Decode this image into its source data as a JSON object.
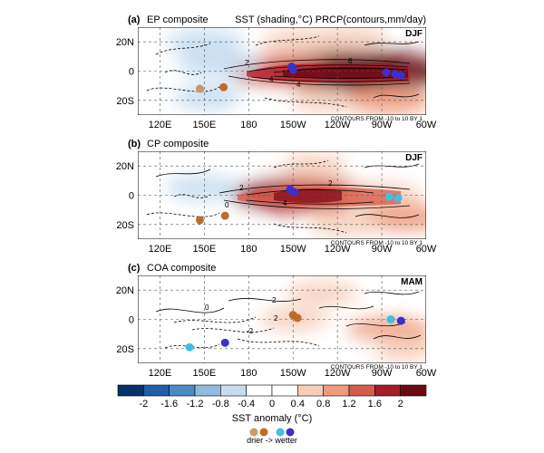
{
  "chart_data": {
    "type": "heatmap",
    "map_extent": {
      "lon": [
        105,
        300
      ],
      "lat": [
        -30,
        30
      ]
    },
    "lon_ticks": [
      "120E",
      "150E",
      "180",
      "150W",
      "120W",
      "90W",
      "60W"
    ],
    "lat_ticks": [
      "20N",
      "0",
      "20S"
    ],
    "contour_note": "CONTOURS FROM -10 to 10 BY 1",
    "header_right": "SST (shading,°C) PRCP(contours,mm/day)",
    "panels": [
      {
        "tag": "(a)",
        "title": "EP composite",
        "season": "DJF",
        "contour_labels": [
          "2",
          "6",
          "4",
          "4"
        ],
        "sst_anomalies": [
          {
            "lon": 240,
            "lat": 0,
            "value": 2.0
          },
          {
            "lon": 270,
            "lat": 0,
            "value": 2.0
          },
          {
            "lon": 200,
            "lat": 0,
            "value": 1.2
          },
          {
            "lon": 160,
            "lat": 5,
            "value": -0.8
          },
          {
            "lon": 150,
            "lat": 20,
            "value": -0.6
          },
          {
            "lon": 155,
            "lat": -18,
            "value": -0.6
          },
          {
            "lon": 215,
            "lat": 20,
            "value": 0.6
          },
          {
            "lon": 250,
            "lat": 22,
            "value": 0.4
          },
          {
            "lon": 230,
            "lat": -20,
            "value": 0.4
          },
          {
            "lon": 275,
            "lat": -20,
            "value": 0.8
          },
          {
            "lon": 190,
            "lat": -22,
            "value": -0.2
          }
        ],
        "stations": [
          {
            "lon": 147,
            "lat": -12,
            "class": "drier"
          },
          {
            "lon": 163,
            "lat": -11,
            "class": "dry"
          },
          {
            "lon": 209,
            "lat": 3,
            "class": "wettest"
          },
          {
            "lon": 210,
            "lat": 1,
            "class": "wettest"
          },
          {
            "lon": 273,
            "lat": -1,
            "class": "wettest"
          },
          {
            "lon": 279,
            "lat": -2,
            "class": "wettest"
          },
          {
            "lon": 283,
            "lat": -3,
            "class": "wettest"
          }
        ]
      },
      {
        "tag": "(b)",
        "title": "CP composite",
        "season": "DJF",
        "contour_labels": [
          "2",
          "2",
          "4",
          "0"
        ],
        "sst_anomalies": [
          {
            "lon": 205,
            "lat": 0,
            "value": 1.6
          },
          {
            "lon": 230,
            "lat": 0,
            "value": 1.2
          },
          {
            "lon": 270,
            "lat": 0,
            "value": 0.6
          },
          {
            "lon": 150,
            "lat": 5,
            "value": -0.6
          },
          {
            "lon": 165,
            "lat": -18,
            "value": -0.4
          },
          {
            "lon": 220,
            "lat": 20,
            "value": 0.6
          },
          {
            "lon": 285,
            "lat": -15,
            "value": 0.8
          },
          {
            "lon": 245,
            "lat": -20,
            "value": 0.4
          },
          {
            "lon": 185,
            "lat": 22,
            "value": -0.4
          }
        ],
        "stations": [
          {
            "lon": 147,
            "lat": -17,
            "class": "dry"
          },
          {
            "lon": 164,
            "lat": -14,
            "class": "dry"
          },
          {
            "lon": 208,
            "lat": 4,
            "class": "wettest"
          },
          {
            "lon": 211,
            "lat": 2,
            "class": "wettest"
          },
          {
            "lon": 275,
            "lat": -1,
            "class": "wet"
          },
          {
            "lon": 281,
            "lat": -2,
            "class": "wet"
          }
        ]
      },
      {
        "tag": "(c)",
        "title": "COA composite",
        "season": "MAM",
        "contour_labels": [
          "0",
          "2",
          "2",
          "-2"
        ],
        "sst_anomalies": [
          {
            "lon": 210,
            "lat": 0,
            "value": 0.4
          },
          {
            "lon": 275,
            "lat": -8,
            "value": 0.8
          },
          {
            "lon": 280,
            "lat": -20,
            "value": 0.6
          },
          {
            "lon": 165,
            "lat": 0,
            "value": -0.4
          },
          {
            "lon": 145,
            "lat": 15,
            "value": -0.4
          },
          {
            "lon": 140,
            "lat": -15,
            "value": -0.4
          },
          {
            "lon": 230,
            "lat": 18,
            "value": 0.4
          },
          {
            "lon": 185,
            "lat": -18,
            "value": -0.4
          },
          {
            "lon": 250,
            "lat": -20,
            "value": -0.2
          }
        ],
        "stations": [
          {
            "lon": 140,
            "lat": -19,
            "class": "wet"
          },
          {
            "lon": 164,
            "lat": -16,
            "class": "wettest"
          },
          {
            "lon": 210,
            "lat": 3,
            "class": "dry"
          },
          {
            "lon": 213,
            "lat": 1,
            "class": "dry"
          },
          {
            "lon": 276,
            "lat": 0,
            "class": "wet"
          },
          {
            "lon": 283,
            "lat": -1,
            "class": "wettest"
          }
        ]
      }
    ],
    "colorbar": {
      "ticks": [
        "-2",
        "-1.6",
        "-1.2",
        "-0.8",
        "-0.4",
        "0",
        "0.4",
        "0.8",
        "1.2",
        "1.6",
        "2"
      ],
      "values": [
        -2,
        -1.6,
        -1.2,
        -0.8,
        -0.4,
        0,
        0.4,
        0.8,
        1.2,
        1.6,
        2
      ],
      "colors": [
        "#08306b",
        "#1f5fa8",
        "#4a8ac4",
        "#8fbcdc",
        "#c6dcee",
        "#ffffff",
        "#ffffff",
        "#f7cdb6",
        "#ee9a7b",
        "#d55b4a",
        "#a51d28",
        "#6b0a16"
      ],
      "label": "SST anomaly (°C)"
    },
    "legend": {
      "text": "drier -> wetter",
      "classes": [
        "drier",
        "dry",
        "wet",
        "wettest"
      ],
      "colors": [
        "#c79b6a",
        "#c06a2a",
        "#3ec0e4",
        "#3b2fcf"
      ]
    }
  }
}
